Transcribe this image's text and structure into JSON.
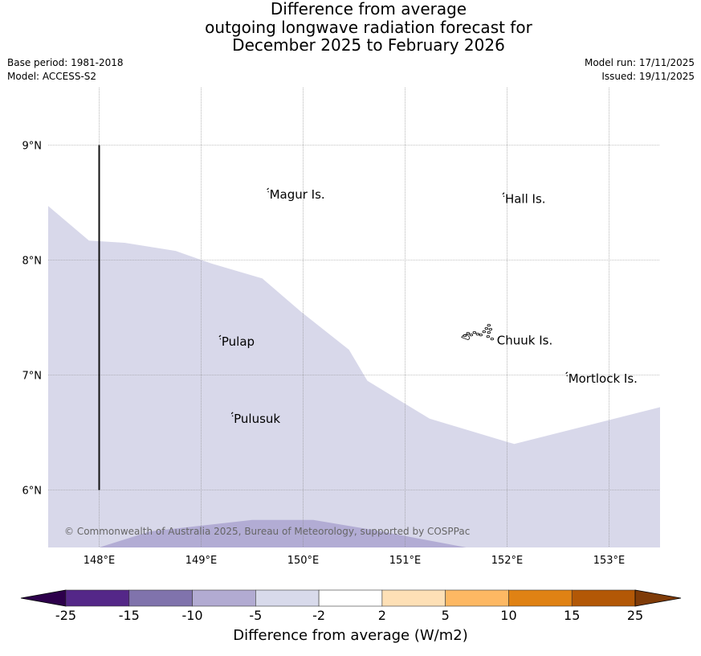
{
  "title": {
    "line1": "Difference from average",
    "line2": "outgoing longwave radiation forecast for",
    "line3": "December 2025 to February 2026"
  },
  "meta": {
    "base_period": "Base period: 1981-2018",
    "model": "Model: ACCESS-S2",
    "model_run": "Model run: 17/11/2025",
    "issued": "Issued: 19/11/2025"
  },
  "map": {
    "extent": {
      "lon_min": 147.5,
      "lon_max": 153.5,
      "lat_min": 5.5,
      "lat_max": 9.5
    },
    "lon_ticks": [
      {
        "value": 148,
        "label": "148°E"
      },
      {
        "value": 149,
        "label": "149°E"
      },
      {
        "value": 150,
        "label": "150°E"
      },
      {
        "value": 151,
        "label": "151°E"
      },
      {
        "value": 152,
        "label": "152°E"
      },
      {
        "value": 153,
        "label": "153°E"
      }
    ],
    "lat_ticks": [
      {
        "value": 9,
        "label": "9°N"
      },
      {
        "value": 8,
        "label": "8°N"
      },
      {
        "value": 7,
        "label": "7°N"
      },
      {
        "value": 6,
        "label": "6°N"
      }
    ],
    "boundary_line": {
      "lon": 148,
      "lat_from": 6,
      "lat_to": 9,
      "color": "#111111"
    },
    "places": [
      {
        "name": "Magur Is.",
        "lon": 149.67,
        "lat": 8.57
      },
      {
        "name": "Hall Is.",
        "lon": 151.98,
        "lat": 8.53
      },
      {
        "name": "Pulap",
        "lon": 149.2,
        "lat": 7.29
      },
      {
        "name": "Chuuk Is.",
        "lon": 151.9,
        "lat": 7.3
      },
      {
        "name": "Mortlock Is.",
        "lon": 152.6,
        "lat": 6.97
      },
      {
        "name": "Pulusuk",
        "lon": 149.32,
        "lat": 6.62
      }
    ],
    "shaded_regions": [
      {
        "category": "-5 to -2",
        "color": "#d8d8ea",
        "upper_boundary": [
          [
            147.5,
            8.47
          ],
          [
            147.9,
            8.17
          ],
          [
            148.25,
            8.15
          ],
          [
            148.75,
            8.08
          ],
          [
            149.1,
            7.97
          ],
          [
            149.6,
            7.84
          ],
          [
            149.98,
            7.55
          ],
          [
            150.45,
            7.22
          ],
          [
            150.63,
            6.95
          ],
          [
            151.24,
            6.62
          ],
          [
            152.07,
            6.4
          ],
          [
            153.5,
            6.72
          ]
        ]
      },
      {
        "category": "-10 to -5",
        "color": "#b2acd4",
        "upper_boundary": [
          [
            147.5,
            5.5
          ],
          [
            148.0,
            5.5
          ],
          [
            148.5,
            5.64
          ],
          [
            149.5,
            5.74
          ],
          [
            150.1,
            5.74
          ],
          [
            150.7,
            5.65
          ],
          [
            151.6,
            5.5
          ],
          [
            153.5,
            5.5
          ]
        ]
      }
    ],
    "copyright": "© Commonwealth of Australia 2025, Bureau of Meteorology, supported by COSPPac"
  },
  "colorbar": {
    "title": "Difference from average (W/m2)",
    "ticks": [
      "-25",
      "-15",
      "-10",
      "-5",
      "-2",
      "2",
      "5",
      "10",
      "15",
      "25"
    ],
    "colors": [
      "#542788",
      "#8073ac",
      "#b2abd2",
      "#d8daeb",
      "#ffffff",
      "#fee0b6",
      "#fdb863",
      "#e08214",
      "#b35806"
    ],
    "under_color": "#2d004b",
    "over_color": "#7f3b08"
  }
}
